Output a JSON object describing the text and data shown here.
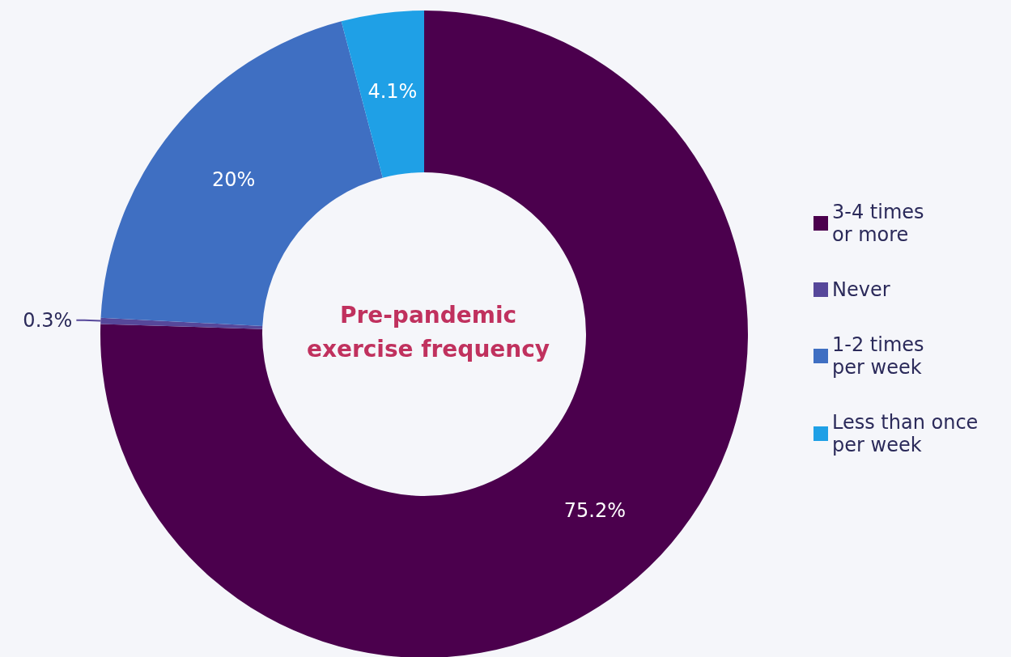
{
  "chart_data": {
    "type": "donut",
    "title": "Pre-pandemic\nexercise frequency",
    "categories": [
      "3-4 times\nor more",
      "Never",
      "1-2 times\nper week",
      "Less than once\nper week"
    ],
    "values": [
      75.2,
      0.3,
      20,
      4.1
    ],
    "colors": [
      "#4b004d",
      "#56479a",
      "#3f6fc2",
      "#1fa0e6"
    ],
    "value_labels": [
      "75.2%",
      "0.3%",
      "20%",
      "4.1%"
    ],
    "legend": "right"
  }
}
